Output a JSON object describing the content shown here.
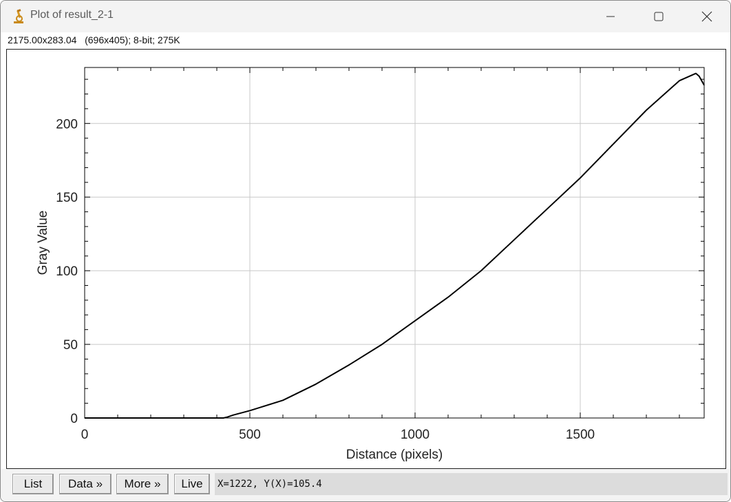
{
  "window": {
    "title": "Plot of result_2-1",
    "icon": "microscope-icon",
    "controls": [
      "minimize-icon",
      "maximize-icon",
      "close-icon"
    ]
  },
  "info_line": "2175.00x283.04   (696x405); 8-bit; 275K",
  "buttons": {
    "list": "List",
    "data": "Data »",
    "more": "More »",
    "live": "Live"
  },
  "status": "X=1222, Y(X)=105.4",
  "chart_data": {
    "type": "line",
    "xlabel": "Distance (pixels)",
    "ylabel": "Gray Value",
    "xlim": [
      0,
      1875
    ],
    "ylim": [
      0,
      238
    ],
    "xticks": [
      0,
      500,
      1000,
      1500
    ],
    "yticks": [
      0,
      50,
      100,
      150,
      200
    ],
    "grid": true,
    "series": [
      {
        "x": [
          0,
          300,
          420,
          430,
          450,
          500,
          600,
          700,
          800,
          900,
          1000,
          1100,
          1200,
          1300,
          1400,
          1500,
          1600,
          1700,
          1800,
          1840,
          1850,
          1860,
          1870,
          1875
        ],
        "y": [
          0,
          0,
          0,
          0.5,
          2,
          5,
          12,
          23,
          36,
          50,
          66,
          82,
          100,
          121,
          142,
          163,
          186,
          209,
          229,
          233,
          234,
          232,
          228,
          226
        ]
      }
    ]
  }
}
